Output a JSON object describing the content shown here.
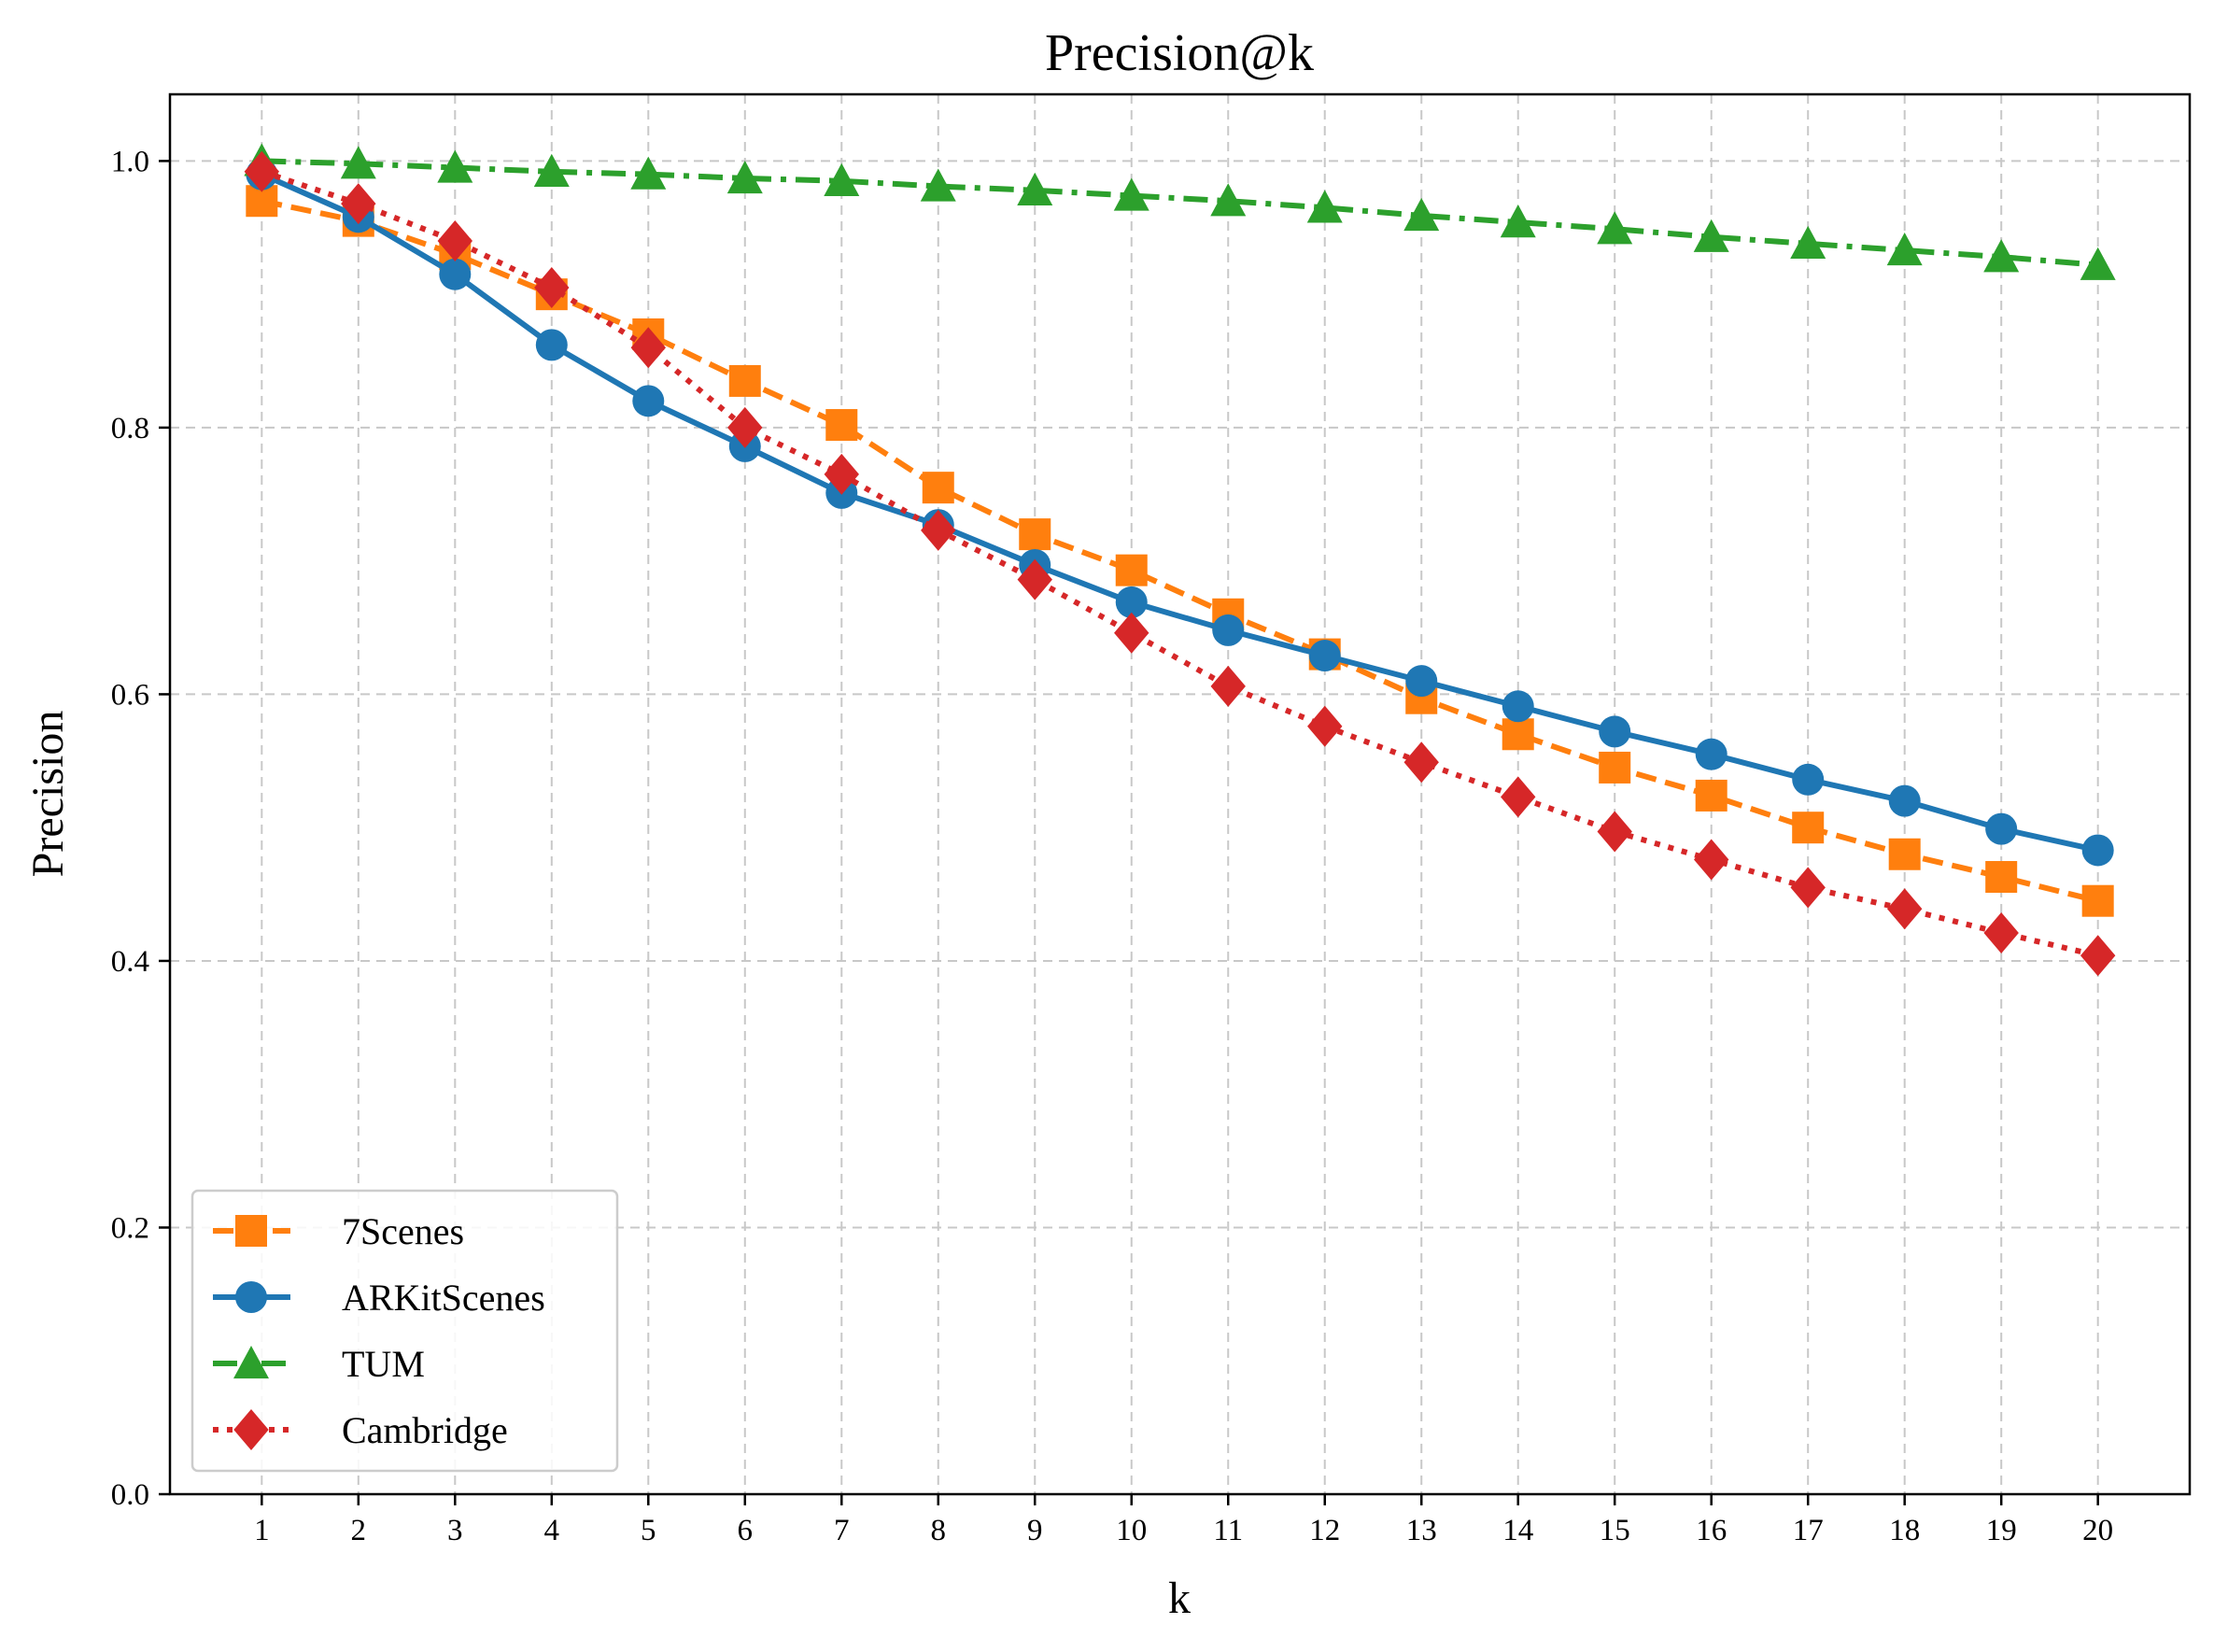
{
  "chart_data": {
    "type": "line",
    "title": "Precision@k",
    "xlabel": "k",
    "ylabel": "Precision",
    "x": [
      1,
      2,
      3,
      4,
      5,
      6,
      7,
      8,
      9,
      10,
      11,
      12,
      13,
      14,
      15,
      16,
      17,
      18,
      19,
      20
    ],
    "xticks": [
      "1",
      "2",
      "3",
      "4",
      "5",
      "6",
      "7",
      "8",
      "9",
      "10",
      "11",
      "12",
      "13",
      "14",
      "15",
      "16",
      "17",
      "18",
      "19",
      "20"
    ],
    "yticks": [
      "0.0",
      "0.2",
      "0.4",
      "0.6",
      "0.8",
      "1.0"
    ],
    "ylim": [
      0,
      1.05
    ],
    "xlim": [
      0.05,
      20.95
    ],
    "grid": true,
    "legend_position": "lower-left",
    "series": [
      {
        "name": "7Scenes",
        "color": "#ff7f0e",
        "marker": "square",
        "linestyle": "dashed",
        "values": [
          0.97,
          0.955,
          0.93,
          0.9,
          0.87,
          0.835,
          0.802,
          0.755,
          0.72,
          0.693,
          0.66,
          0.63,
          0.597,
          0.57,
          0.545,
          0.524,
          0.5,
          0.48,
          0.463,
          0.445
        ]
      },
      {
        "name": "ARKitScenes",
        "color": "#1f77b4",
        "marker": "circle",
        "linestyle": "solid",
        "values": [
          0.99,
          0.958,
          0.915,
          0.862,
          0.82,
          0.786,
          0.751,
          0.727,
          0.697,
          0.669,
          0.648,
          0.629,
          0.61,
          0.591,
          0.572,
          0.555,
          0.536,
          0.52,
          0.499,
          0.483
        ]
      },
      {
        "name": "TUM",
        "color": "#2ca02c",
        "marker": "triangle",
        "linestyle": "dashdot",
        "values": [
          1.0,
          0.998,
          0.995,
          0.992,
          0.99,
          0.987,
          0.985,
          0.981,
          0.978,
          0.974,
          0.97,
          0.965,
          0.959,
          0.954,
          0.949,
          0.943,
          0.938,
          0.933,
          0.928,
          0.922
        ]
      },
      {
        "name": "Cambridge",
        "color": "#d62728",
        "marker": "diamond",
        "linestyle": "dotted",
        "values": [
          0.992,
          0.968,
          0.94,
          0.905,
          0.86,
          0.8,
          0.765,
          0.723,
          0.686,
          0.646,
          0.606,
          0.576,
          0.549,
          0.523,
          0.497,
          0.476,
          0.455,
          0.439,
          0.421,
          0.404
        ]
      }
    ]
  }
}
